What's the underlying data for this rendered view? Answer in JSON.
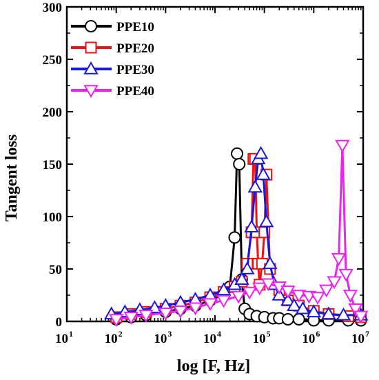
{
  "chart_data": {
    "type": "line",
    "xscale": "log",
    "xlim": [
      10,
      10000000
    ],
    "ylim": [
      0,
      300
    ],
    "xlabel": "log [F, Hz]",
    "ylabel": "Tangent loss",
    "x_ticks": [
      {
        "base": "10",
        "exp": "1"
      },
      {
        "base": "10",
        "exp": "2"
      },
      {
        "base": "10",
        "exp": "3"
      },
      {
        "base": "10",
        "exp": "4"
      },
      {
        "base": "10",
        "exp": "5"
      },
      {
        "base": "10",
        "exp": "6"
      },
      {
        "base": "10",
        "exp": "7"
      }
    ],
    "y_ticks": [
      "0",
      "50",
      "100",
      "150",
      "200",
      "250",
      "300"
    ],
    "legend_position": "top-left",
    "series": [
      {
        "name": "PPE10",
        "color": "#000000",
        "marker": "circle",
        "x": [
          100,
          200,
          400,
          1000,
          2000,
          4000,
          8000,
          15000,
          20000,
          25000,
          28000,
          31000,
          35000,
          40000,
          50000,
          70000,
          100000,
          150000,
          200000,
          300000,
          500000,
          1000000,
          2000000,
          5000000,
          9000000
        ],
        "y": [
          2,
          4,
          6,
          9,
          12,
          15,
          20,
          26,
          33,
          80,
          160,
          150,
          40,
          12,
          7,
          5,
          4,
          3,
          3,
          2,
          2,
          1,
          1,
          1,
          1
        ]
      },
      {
        "name": "PPE20",
        "color": "#ee1111",
        "marker": "square",
        "x": [
          100,
          200,
          400,
          1000,
          2000,
          4000,
          8000,
          15000,
          25000,
          35000,
          45000,
          55000,
          60000,
          65000,
          70000,
          75000,
          80000,
          90000,
          100000,
          110000,
          130000,
          200000,
          300000,
          500000,
          1000000,
          2000000,
          5000000,
          9000000
        ],
        "y": [
          4,
          7,
          9,
          12,
          15,
          18,
          23,
          28,
          33,
          38,
          55,
          85,
          155,
          155,
          85,
          55,
          35,
          55,
          85,
          140,
          50,
          30,
          20,
          15,
          10,
          7,
          5,
          4
        ]
      },
      {
        "name": "PPE30",
        "color": "#1818dd",
        "marker": "triangle-up",
        "x": [
          80,
          150,
          300,
          600,
          1000,
          2000,
          4000,
          8000,
          15000,
          25000,
          35000,
          45000,
          55000,
          65000,
          75000,
          85000,
          95000,
          110000,
          130000,
          160000,
          200000,
          300000,
          400000,
          600000,
          1000000,
          2000000,
          4000000,
          9000000
        ],
        "y": [
          7,
          9,
          11,
          13,
          15,
          18,
          21,
          25,
          30,
          35,
          40,
          50,
          90,
          128,
          155,
          160,
          140,
          95,
          55,
          35,
          25,
          20,
          15,
          12,
          9,
          7,
          6,
          6
        ]
      },
      {
        "name": "PPE40",
        "color": "#ee22ee",
        "marker": "triangle-down",
        "x": [
          100,
          200,
          400,
          1000,
          2000,
          4000,
          8000,
          15000,
          30000,
          50000,
          80000,
          120000,
          200000,
          300000,
          500000,
          800000,
          1200000,
          1800000,
          2600000,
          3200000,
          3800000,
          4500000,
          5500000,
          7000000,
          9000000
        ],
        "y": [
          2,
          4,
          6,
          8,
          10,
          13,
          17,
          20,
          24,
          28,
          32,
          36,
          33,
          29,
          25,
          24,
          23,
          30,
          38,
          60,
          168,
          45,
          25,
          12,
          5
        ]
      }
    ]
  }
}
